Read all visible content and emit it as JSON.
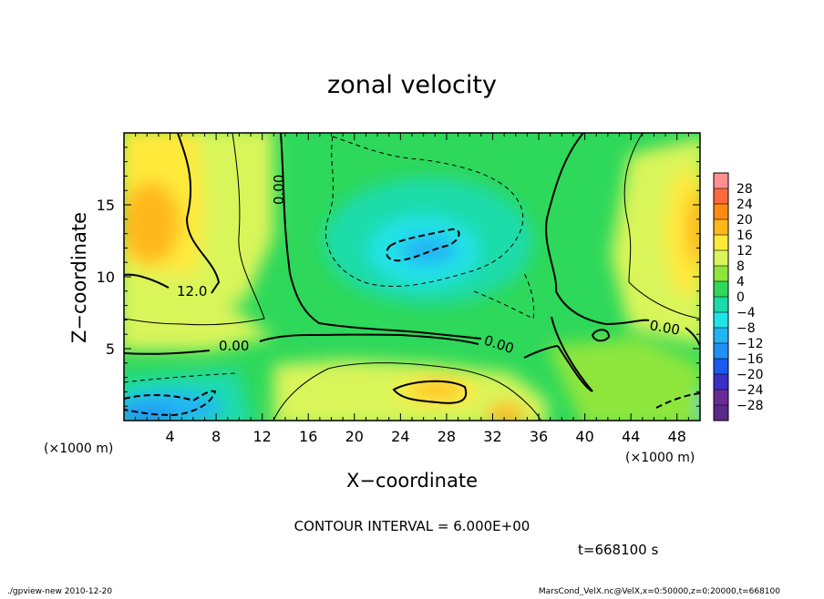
{
  "chart_data": {
    "type": "heatmap",
    "title": "zonal velocity",
    "xlabel": "X−coordinate",
    "ylabel": "Z−coordinate",
    "x_unit": "(×1000 m)",
    "y_unit": "(×1000 m)",
    "xlim": [
      0,
      50
    ],
    "ylim": [
      0,
      20
    ],
    "x_ticks": [
      "4",
      "8",
      "12",
      "16",
      "20",
      "24",
      "28",
      "32",
      "36",
      "40",
      "44",
      "48"
    ],
    "y_ticks": [
      "5",
      "10",
      "15"
    ],
    "colorbar_levels": [
      "28",
      "24",
      "20",
      "16",
      "12",
      "8",
      "4",
      "0",
      "−4",
      "−8",
      "−12",
      "−16",
      "−20",
      "−24",
      "−28"
    ],
    "colorbar_colors": [
      "#ff9090",
      "#ff6a3c",
      "#ff8a14",
      "#ffb81a",
      "#ffe93a",
      "#d9f55a",
      "#8ee63c",
      "#2ed85a",
      "#1adcaa",
      "#20e3e8",
      "#20b4f4",
      "#2090f4",
      "#1a5aee",
      "#3a30c8",
      "#6a2a96"
    ],
    "contour_labels": [
      "12.0",
      "0.00",
      "0.00",
      "0.00",
      "0.00"
    ],
    "contour_interval": "CONTOUR INTERVAL = 6.000E+00",
    "time_label": "t=668100 s",
    "grid": false,
    "legend": "right colorbar"
  },
  "footer": {
    "left": "./gpview-new  2010-12-20",
    "right": "MarsCond_VelX.nc@VelX,x=0:50000,z=0:20000,t=668100"
  }
}
